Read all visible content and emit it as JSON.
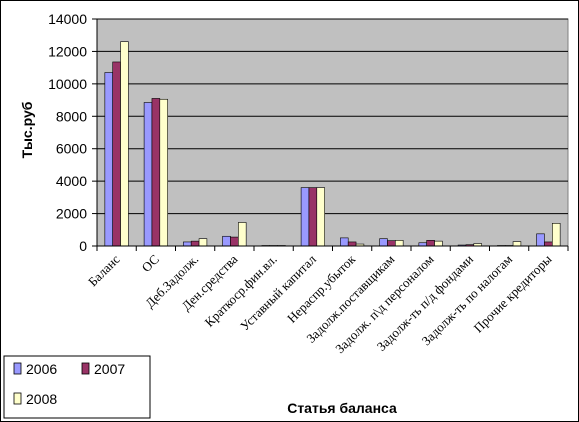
{
  "chart_data": {
    "type": "bar",
    "title": "",
    "xlabel": "Статья баланса",
    "ylabel": "Тыс.руб",
    "ylim": [
      0,
      14000
    ],
    "yticks": [
      0,
      2000,
      4000,
      6000,
      8000,
      10000,
      12000,
      14000
    ],
    "grid": true,
    "legend_position": "bottom-left",
    "categories": [
      "Баланс",
      "ОС",
      "Деб.Задолж.",
      "Ден.средства",
      "Краткоср.фин.вл.",
      "Уставный капитал",
      "Нераспр.убыток",
      "Задолж.поставщикам",
      "Задолж. п\\д персоналом",
      "Задолж-ть п/д фондами",
      "Задолж-ть по налогам",
      "Прочие кредиторы"
    ],
    "series": [
      {
        "name": "2006",
        "color": "#9999ff",
        "values": [
          10700,
          8850,
          250,
          600,
          30,
          3600,
          500,
          450,
          200,
          60,
          20,
          750
        ]
      },
      {
        "name": "2007",
        "color": "#993366",
        "values": [
          11350,
          9100,
          300,
          550,
          20,
          3600,
          250,
          330,
          350,
          80,
          30,
          250
        ]
      },
      {
        "name": "2008",
        "color": "#ffffcc",
        "values": [
          12600,
          9050,
          450,
          1450,
          10,
          3600,
          120,
          350,
          300,
          150,
          270,
          1400
        ]
      }
    ],
    "plot_background": "#c0c0c0"
  }
}
